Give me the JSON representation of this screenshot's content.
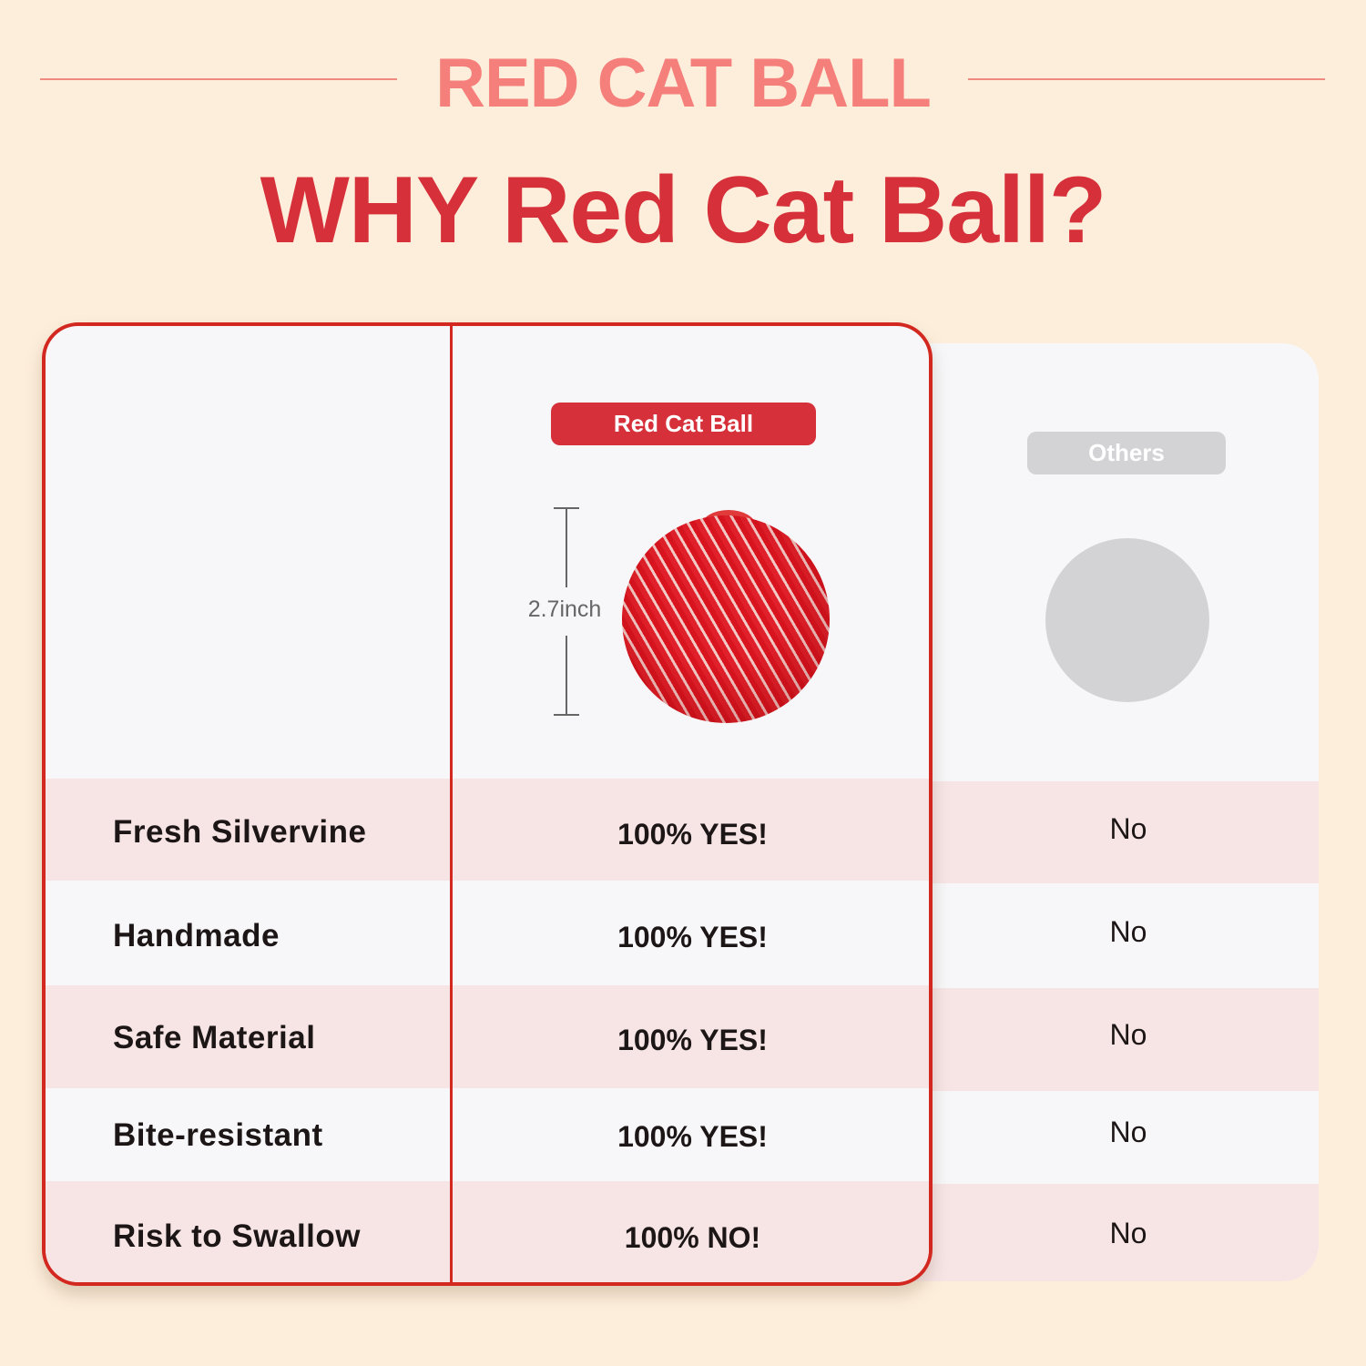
{
  "header": {
    "brand": "RED CAT BALL",
    "headline": "WHY Red Cat Ball?"
  },
  "columns": {
    "ours": "Red Cat Ball",
    "others": "Others"
  },
  "product": {
    "size_label": "2.7inch"
  },
  "rows": [
    {
      "feature": "Fresh Silvervine",
      "ours": "100% YES!",
      "others": "No"
    },
    {
      "feature": "Handmade",
      "ours": "100% YES!",
      "others": "No"
    },
    {
      "feature": "Safe Material",
      "ours": "100% YES!",
      "others": "No"
    },
    {
      "feature": "Bite-resistant",
      "ours": "100% YES!",
      "others": "No"
    },
    {
      "feature": "Risk to Swallow",
      "ours": "100% NO!",
      "others": "No"
    }
  ],
  "colors": {
    "background": "#fdeedb",
    "accent": "#d6303a",
    "brand": "#f57f7b",
    "others_gray": "#d3d3d5"
  }
}
